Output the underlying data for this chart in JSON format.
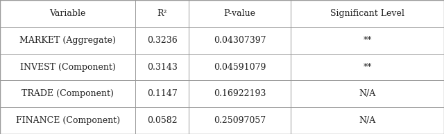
{
  "headers": [
    "Variable",
    "R²",
    "P-value",
    "Significant Level"
  ],
  "rows": [
    [
      "MARKET (Aggregate)",
      "0.3236",
      "0.04307397",
      "**"
    ],
    [
      "INVEST (Component)",
      "0.3143",
      "0.04591079",
      "**"
    ],
    [
      "TRADE (Component)",
      "0.1147",
      "0.16922193",
      "N/A"
    ],
    [
      "FINANCE (Component)",
      "0.0582",
      "0.25097057",
      "N/A"
    ]
  ],
  "background_color": "#ffffff",
  "border_color": "#999999",
  "text_color": "#222222",
  "header_fontsize": 9.0,
  "cell_fontsize": 9.0,
  "col_bounds": [
    0.0,
    0.305,
    0.425,
    0.655,
    1.0
  ],
  "outer_lw": 1.0,
  "inner_lw": 0.7
}
